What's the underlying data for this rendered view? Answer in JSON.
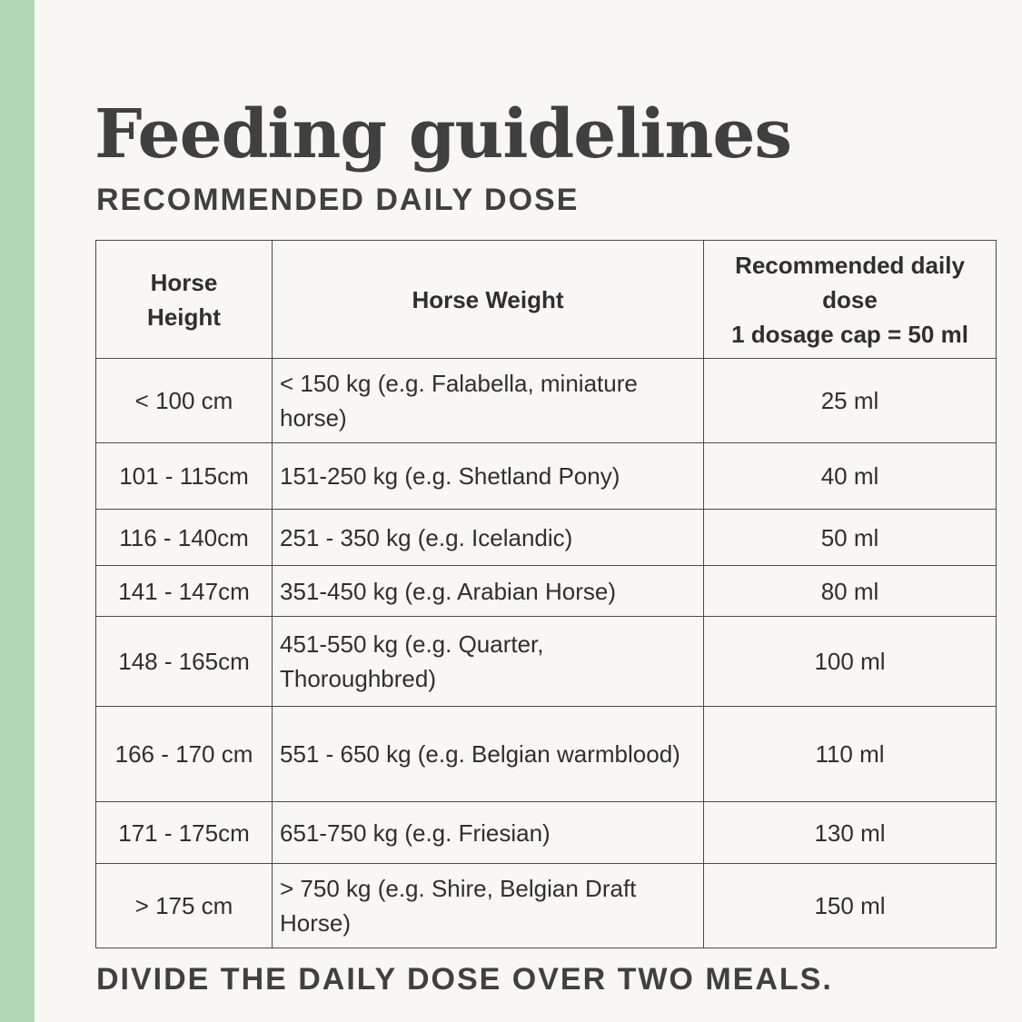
{
  "colors": {
    "accent_bar": "#b1d7b5",
    "background": "#f8f7f3",
    "text": "#404040",
    "border": "#4a4a4a"
  },
  "title": "Feeding guidelines",
  "subtitle": "RECOMMENDED DAILY DOSE",
  "table": {
    "headers": {
      "height": [
        "Horse",
        "Height"
      ],
      "weight": [
        "Horse Weight"
      ],
      "dose": [
        "Recommended daily",
        "dose",
        "1 dosage cap = 50 ml"
      ]
    },
    "rows": [
      {
        "height": "< 100 cm",
        "weight": "< 150 kg (e.g. Falabella, miniature horse)",
        "dose": "25 ml"
      },
      {
        "height": "101 - 115cm",
        "weight": "151-250 kg (e.g. Shetland Pony)",
        "dose": "40 ml"
      },
      {
        "height": "116 - 140cm",
        "weight": "251 - 350 kg (e.g. Icelandic)",
        "dose": "50 ml"
      },
      {
        "height": "141 - 147cm",
        "weight": "351-450 kg (e.g. Arabian Horse)",
        "dose": "80 ml"
      },
      {
        "height": "148 - 165cm",
        "weight": "451-550 kg (e.g. Quarter, Thoroughbred)",
        "dose": "100 ml"
      },
      {
        "height": "166 - 170 cm",
        "weight": "551 - 650 kg (e.g. Belgian warmblood)",
        "dose": "110 ml"
      },
      {
        "height": "171 - 175cm",
        "weight": "651-750 kg (e.g. Friesian)",
        "dose": "130 ml"
      },
      {
        "height": "> 175 cm",
        "weight": "> 750 kg (e.g. Shire, Belgian Draft Horse)",
        "dose": "150 ml"
      }
    ]
  },
  "footer": "DIVIDE THE DAILY DOSE OVER TWO MEALS."
}
